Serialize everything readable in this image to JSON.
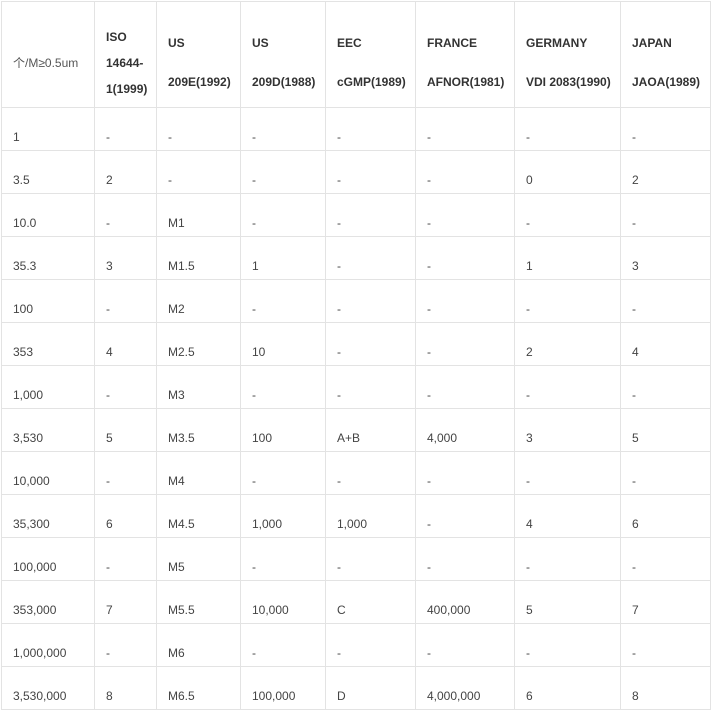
{
  "table": {
    "corner": "个/M≥0.5um",
    "headers": [
      {
        "line1": "ISO",
        "line2": "14644-",
        "line3": "1(1999)"
      },
      {
        "line1": "US",
        "line2": "209E(1992)"
      },
      {
        "line1": "US",
        "line2": "209D(1988)"
      },
      {
        "line1": "EEC",
        "line2": "cGMP(1989)"
      },
      {
        "line1": "FRANCE",
        "line2": "AFNOR(1981)"
      },
      {
        "line1": "GERMANY",
        "line2": "VDI 2083(1990)"
      },
      {
        "line1": "JAPAN",
        "line2": "JAOA(1989)"
      }
    ],
    "rows": [
      [
        "1",
        "-",
        "-",
        "-",
        "-",
        "-",
        "-",
        "-"
      ],
      [
        "3.5",
        "2",
        "-",
        "-",
        "-",
        "-",
        "0",
        "2"
      ],
      [
        "10.0",
        "-",
        "M1",
        "-",
        "-",
        "-",
        "-",
        "-"
      ],
      [
        "35.3",
        "3",
        "M1.5",
        "1",
        "-",
        "-",
        "1",
        "3"
      ],
      [
        "100",
        "-",
        "M2",
        "-",
        "-",
        "-",
        "-",
        "-"
      ],
      [
        "353",
        "4",
        "M2.5",
        "10",
        "-",
        "-",
        "2",
        "4"
      ],
      [
        "1,000",
        "-",
        "M3",
        "-",
        "-",
        "-",
        "-",
        "-"
      ],
      [
        "3,530",
        "5",
        "M3.5",
        "100",
        "A+B",
        "4,000",
        "3",
        "5"
      ],
      [
        "10,000",
        "-",
        "M4",
        "-",
        "-",
        "-",
        "-",
        "-"
      ],
      [
        "35,300",
        "6",
        "M4.5",
        "1,000",
        "1,000",
        "-",
        "4",
        "6"
      ],
      [
        "100,000",
        "-",
        "M5",
        "-",
        "-",
        "-",
        "-",
        "-"
      ],
      [
        "353,000",
        "7",
        "M5.5",
        "10,000",
        "C",
        "400,000",
        "5",
        "7"
      ],
      [
        "1,000,000",
        "-",
        "M6",
        "-",
        "-",
        "-",
        "-",
        "-"
      ],
      [
        "3,530,000",
        "8",
        "M6.5",
        "100,000",
        "D",
        "4,000,000",
        "6",
        "8"
      ]
    ]
  }
}
